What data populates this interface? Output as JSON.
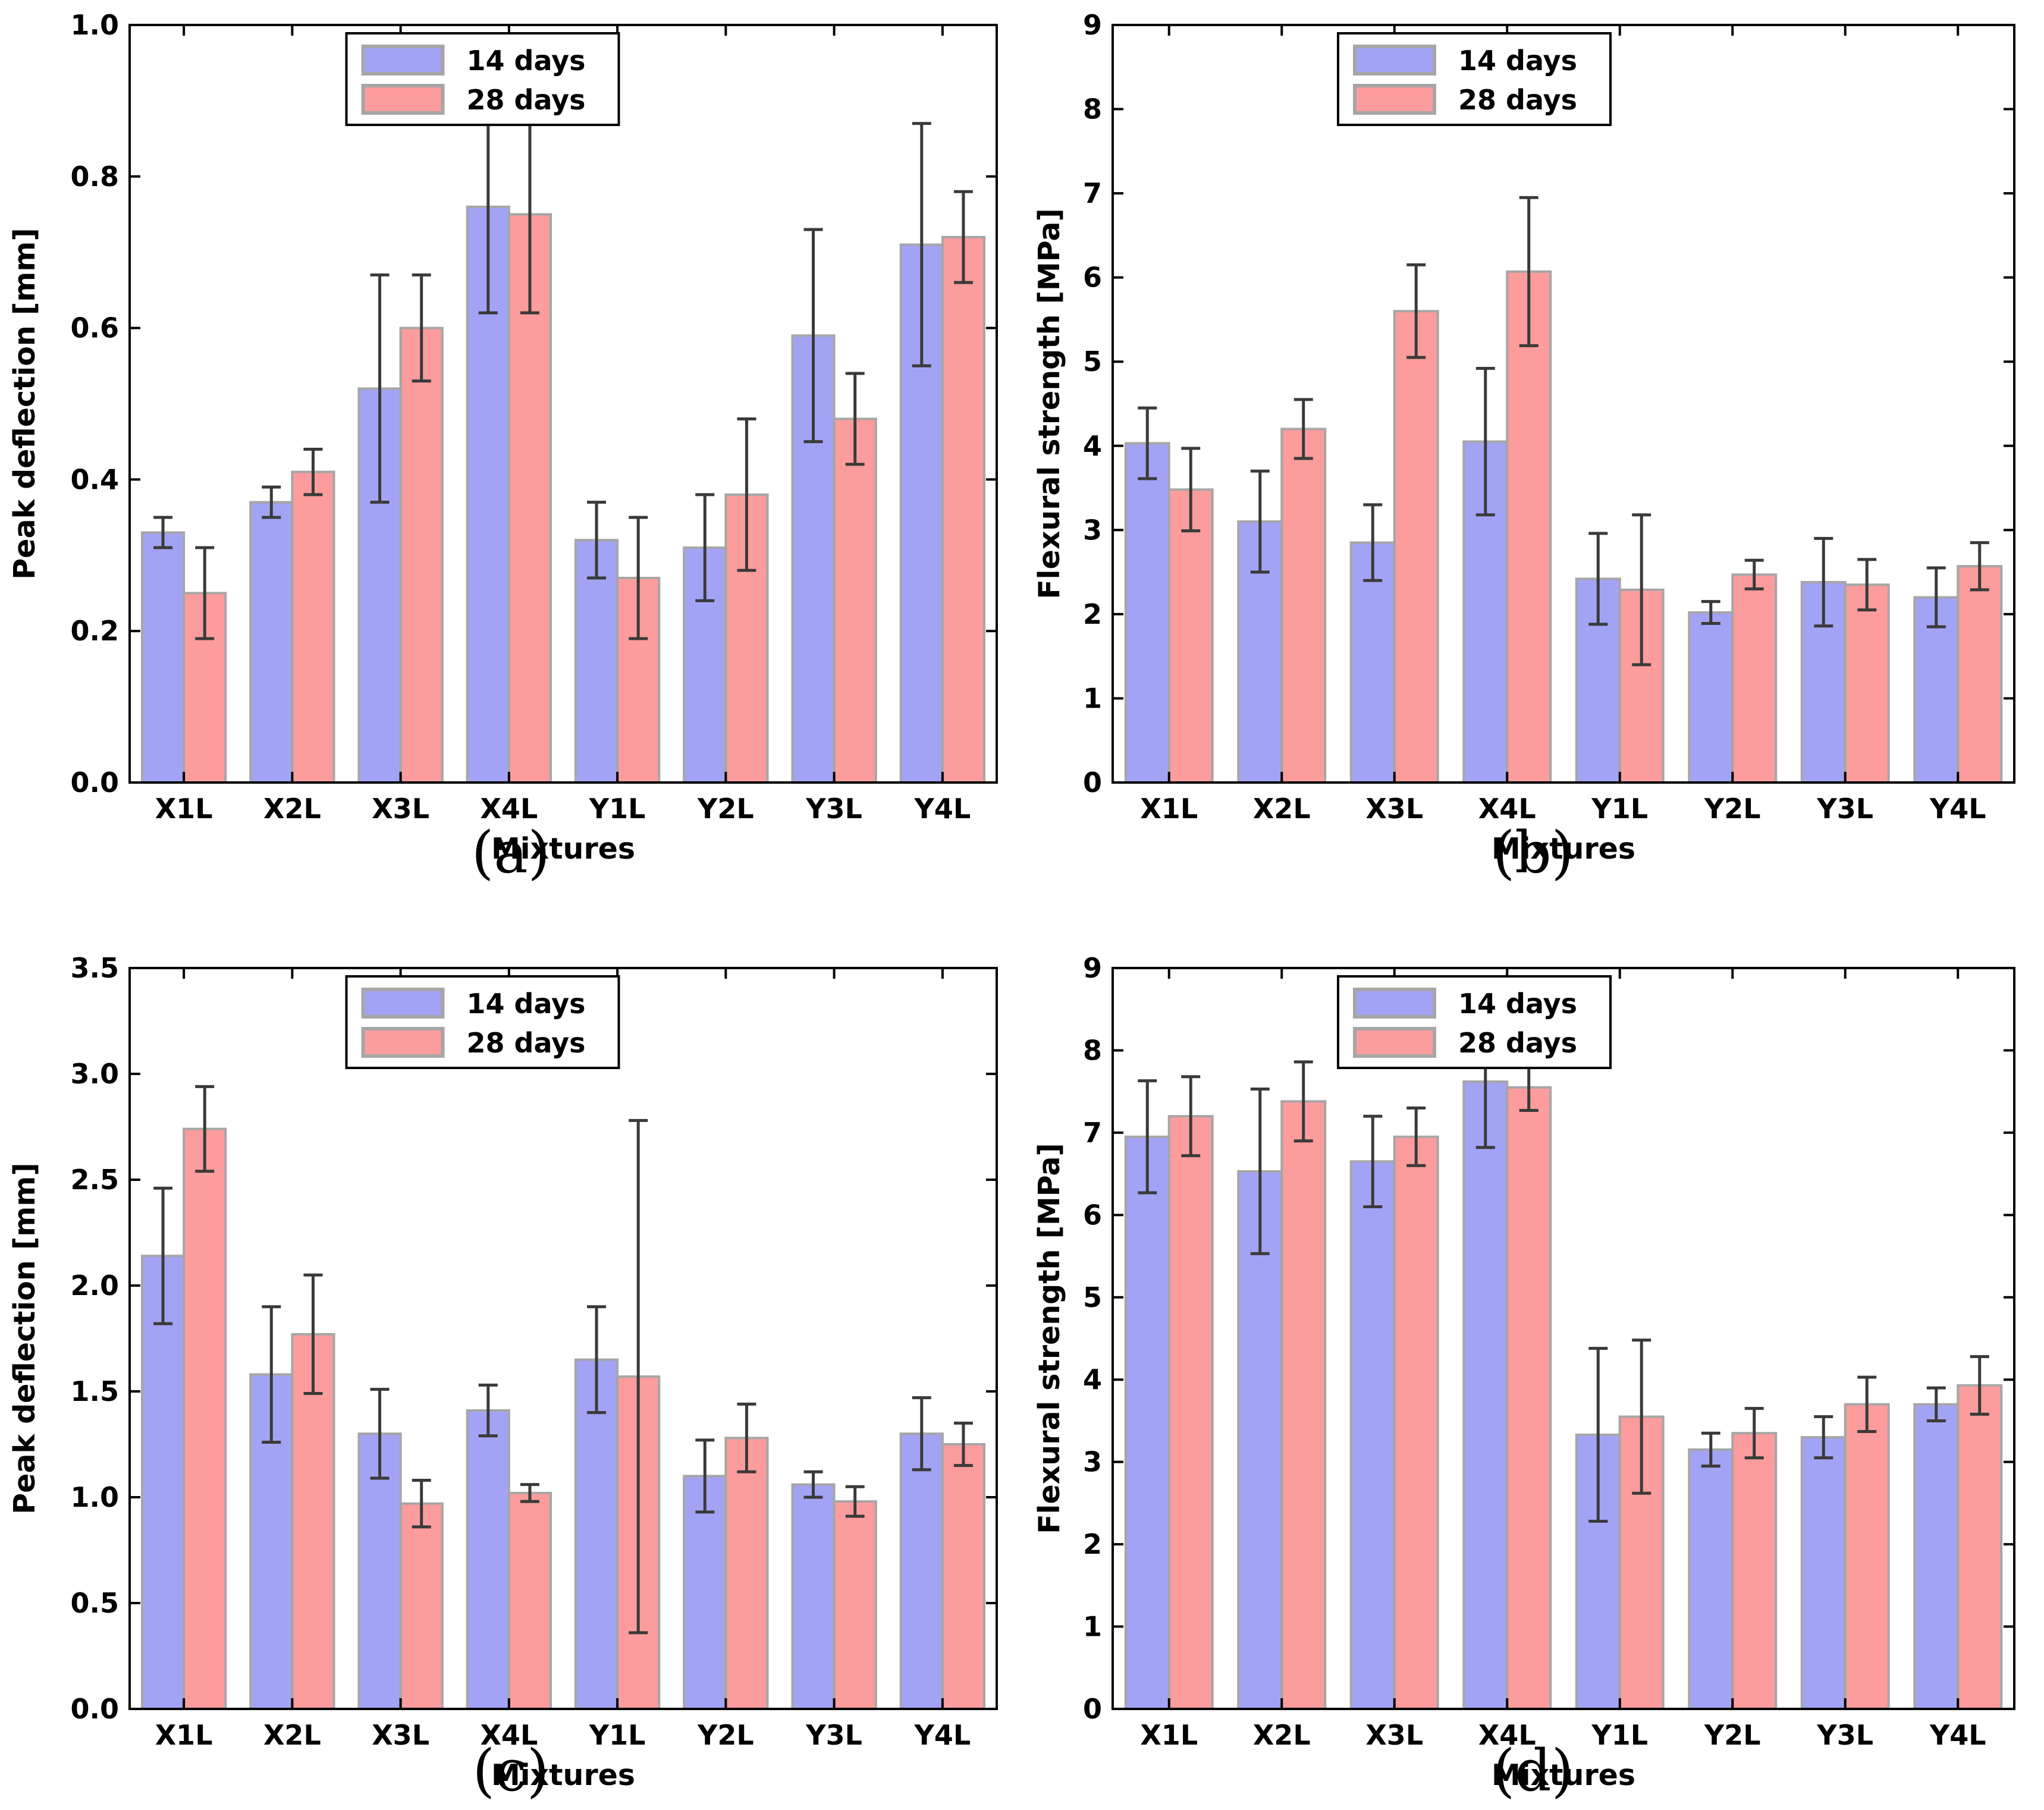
{
  "figure": {
    "background": "#ffffff",
    "legend_labels": [
      "14 days",
      "28 days"
    ]
  },
  "style": {
    "series_14_days_color": "#a3a3f5",
    "series_28_days_color": "#fc9c9c",
    "bar_edge_color": "#a6a6a6",
    "errorbar_color": "#3a3a3a",
    "axis_color": "#000000",
    "legend_border_color": "#000000",
    "legend_background": "#ffffff"
  },
  "chart_data": [
    {
      "id": "a",
      "type": "bar",
      "caption": "(a)",
      "title": "",
      "xlabel": "Mixtures",
      "ylabel": "Peak deflection [mm]",
      "ylim": [
        0,
        1.0
      ],
      "ytick_step": 0.2,
      "ytick_decimals": 1,
      "grid": false,
      "legend_position": "upper center-left",
      "legend": [
        "14 days",
        "28 days"
      ],
      "categories": [
        "X1L",
        "X2L",
        "X3L",
        "X4L",
        "Y1L",
        "Y2L",
        "Y3L",
        "Y4L"
      ],
      "series": [
        {
          "name": "14 days",
          "color": "#a3a3f5",
          "values": [
            0.33,
            0.37,
            0.52,
            0.76,
            0.32,
            0.31,
            0.59,
            0.71
          ],
          "errors": [
            0.02,
            0.02,
            0.15,
            0.14,
            0.05,
            0.07,
            0.14,
            0.16
          ]
        },
        {
          "name": "28 days",
          "color": "#fc9c9c",
          "values": [
            0.25,
            0.41,
            0.6,
            0.75,
            0.27,
            0.38,
            0.48,
            0.72
          ],
          "errors": [
            0.06,
            0.03,
            0.07,
            0.13,
            0.08,
            0.1,
            0.06,
            0.06
          ]
        }
      ]
    },
    {
      "id": "b",
      "type": "bar",
      "caption": "(b)",
      "title": "",
      "xlabel": "Mixtures",
      "ylabel": "Flexural strength [MPa]",
      "ylim": [
        0,
        9
      ],
      "ytick_step": 1,
      "ytick_decimals": 0,
      "grid": false,
      "legend_position": "upper center-left",
      "legend": [
        "14 days",
        "28 days"
      ],
      "categories": [
        "X1L",
        "X2L",
        "X3L",
        "X4L",
        "Y1L",
        "Y2L",
        "Y3L",
        "Y4L"
      ],
      "series": [
        {
          "name": "14 days",
          "color": "#a3a3f5",
          "values": [
            4.03,
            3.1,
            2.85,
            4.05,
            2.42,
            2.02,
            2.38,
            2.2
          ],
          "errors": [
            0.42,
            0.6,
            0.45,
            0.87,
            0.54,
            0.13,
            0.52,
            0.35
          ]
        },
        {
          "name": "28 days",
          "color": "#fc9c9c",
          "values": [
            3.48,
            4.2,
            5.6,
            6.07,
            2.29,
            2.47,
            2.35,
            2.57
          ],
          "errors": [
            0.49,
            0.35,
            0.55,
            0.88,
            0.89,
            0.17,
            0.3,
            0.28
          ]
        }
      ]
    },
    {
      "id": "c",
      "type": "bar",
      "caption": "(c)",
      "title": "",
      "xlabel": "Mixtures",
      "ylabel": "Peak deflection [mm]",
      "ylim": [
        0,
        3.5
      ],
      "ytick_step": 0.5,
      "ytick_decimals": 1,
      "grid": false,
      "legend_position": "upper center-left",
      "legend": [
        "14 days",
        "28 days"
      ],
      "categories": [
        "X1L",
        "X2L",
        "X3L",
        "X4L",
        "Y1L",
        "Y2L",
        "Y3L",
        "Y4L"
      ],
      "series": [
        {
          "name": "14 days",
          "color": "#a3a3f5",
          "values": [
            2.14,
            1.58,
            1.3,
            1.41,
            1.65,
            1.1,
            1.06,
            1.3
          ],
          "errors": [
            0.32,
            0.32,
            0.21,
            0.12,
            0.25,
            0.17,
            0.06,
            0.17
          ]
        },
        {
          "name": "28 days",
          "color": "#fc9c9c",
          "values": [
            2.74,
            1.77,
            0.97,
            1.02,
            1.57,
            1.28,
            0.98,
            1.25
          ],
          "errors": [
            0.2,
            0.28,
            0.11,
            0.04,
            1.21,
            0.16,
            0.07,
            0.1
          ]
        }
      ]
    },
    {
      "id": "d",
      "type": "bar",
      "caption": "(d)",
      "title": "",
      "xlabel": "Mixtures",
      "ylabel": "Flexural strength [MPa]",
      "ylim": [
        0,
        9
      ],
      "ytick_step": 1,
      "ytick_decimals": 0,
      "grid": false,
      "legend_position": "upper center-left",
      "legend": [
        "14 days",
        "28 days"
      ],
      "categories": [
        "X1L",
        "X2L",
        "X3L",
        "X4L",
        "Y1L",
        "Y2L",
        "Y3L",
        "Y4L"
      ],
      "series": [
        {
          "name": "14 days",
          "color": "#a3a3f5",
          "values": [
            6.95,
            6.53,
            6.65,
            7.62,
            3.33,
            3.15,
            3.3,
            3.7
          ],
          "errors": [
            0.68,
            1.0,
            0.55,
            0.8,
            1.05,
            0.2,
            0.25,
            0.2
          ]
        },
        {
          "name": "28 days",
          "color": "#fc9c9c",
          "values": [
            7.2,
            7.38,
            6.95,
            7.55,
            3.55,
            3.35,
            3.7,
            3.93
          ],
          "errors": [
            0.48,
            0.48,
            0.35,
            0.28,
            0.93,
            0.3,
            0.33,
            0.35
          ]
        }
      ]
    }
  ]
}
